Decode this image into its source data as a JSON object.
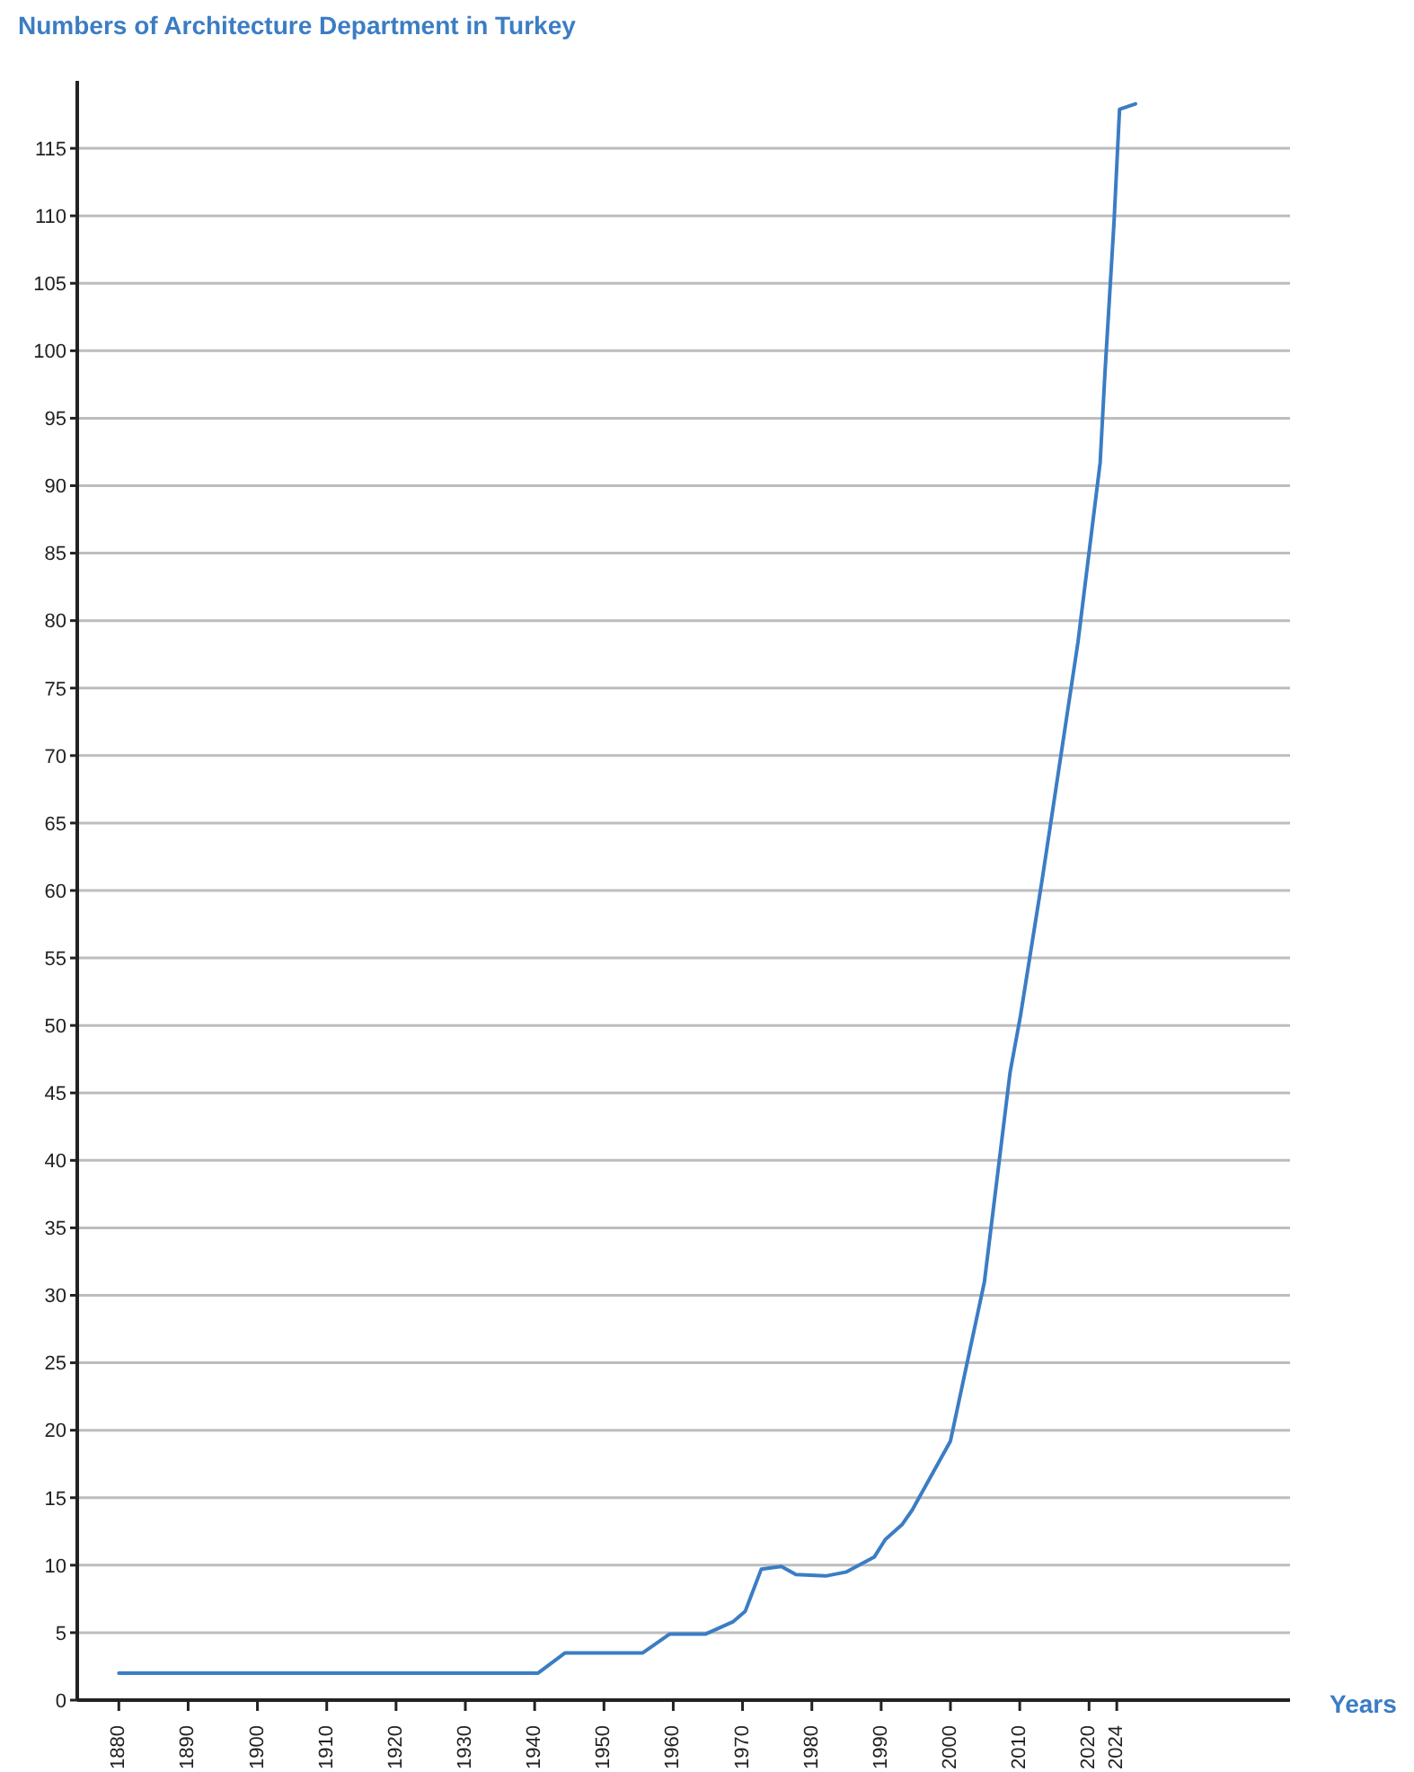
{
  "chart_data": {
    "type": "line",
    "title": "Numbers of Architecture Department in Turkey",
    "xlabel": "Years",
    "x": [
      1880,
      1940.5,
      1944.4,
      1955.6,
      1959.5,
      1964.7,
      1968.6,
      1970.4,
      1972.7,
      1975.6,
      1977.7,
      1982,
      1985,
      1989,
      1990.6,
      1993,
      1994.5,
      2000,
      2004.9,
      2008.6,
      2010.1,
      2013.2,
      2014.5,
      2018.4,
      2021.6,
      2022.3,
      2023.6,
      2024.4,
      2026.7
    ],
    "series": [
      {
        "color": "#3b7dc4",
        "values": [
          2,
          2,
          3.5,
          3.5,
          4.9,
          4.9,
          5.8,
          6.6,
          9.7,
          9.9,
          9.3,
          9.2,
          9.5,
          10.6,
          11.9,
          13,
          14.1,
          19.2,
          31,
          46.5,
          50.7,
          60.7,
          65.1,
          78.4,
          91.7,
          98.4,
          109.5,
          117.9,
          118.3
        ]
      }
    ],
    "xlim": [
      1874,
      2049
    ],
    "xticks": [
      1880,
      1890,
      1900,
      1910,
      1920,
      1930,
      1940,
      1950,
      1960,
      1970,
      1980,
      1990,
      2000,
      2010,
      2020,
      2024
    ],
    "ylim": [
      0,
      120
    ],
    "yticks": [
      0,
      5,
      10,
      15,
      20,
      25,
      30,
      35,
      40,
      45,
      50,
      55,
      60,
      65,
      70,
      75,
      80,
      85,
      90,
      95,
      100,
      105,
      110,
      115
    ],
    "grid": "y",
    "marker": "none",
    "line_style": "solid",
    "legend": false
  }
}
